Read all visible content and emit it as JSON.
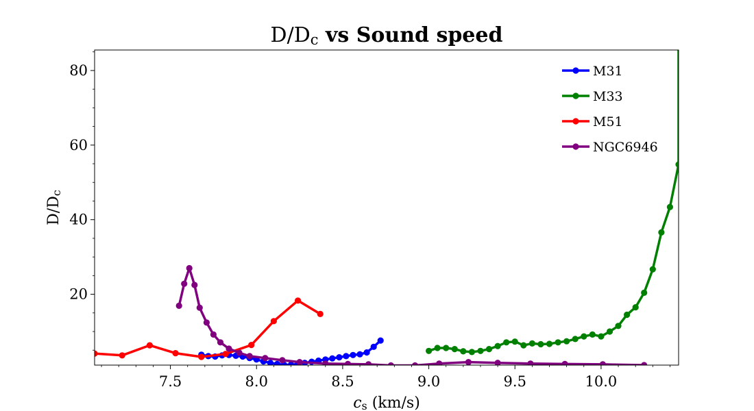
{
  "chart_data": {
    "type": "line",
    "title": "D/D_c vs Sound speed",
    "title_parts": {
      "lead": "D/D",
      "sub": "c",
      "tail": " vs Sound speed"
    },
    "xlabel": "c_s (km/s)",
    "xlabel_parts": {
      "main": "c",
      "sub": "s",
      "tail": " (km/s)"
    },
    "ylabel": "D/D_c",
    "ylabel_parts": {
      "lead": "D/D",
      "sub": "c"
    },
    "xlim": [
      7.06,
      10.45
    ],
    "ylim": [
      1.0,
      85.5
    ],
    "xticks": [
      7.5,
      8.0,
      8.5,
      9.0,
      9.5,
      10.0
    ],
    "xtick_labels": [
      "7.5",
      "8.0",
      "8.5",
      "9.0",
      "9.5",
      "10.0"
    ],
    "yticks": [
      20,
      40,
      60,
      80
    ],
    "ytick_labels": [
      "20",
      "40",
      "60",
      "80"
    ],
    "grid": false,
    "legend_position": "top-right",
    "series": [
      {
        "name": "M31",
        "color": "#0000ff",
        "x": [
          7.68,
          7.72,
          7.76,
          7.8,
          7.84,
          7.88,
          7.92,
          7.96,
          8.0,
          8.04,
          8.08,
          8.12,
          8.16,
          8.2,
          8.24,
          8.28,
          8.32,
          8.36,
          8.4,
          8.44,
          8.48,
          8.52,
          8.56,
          8.6,
          8.64,
          8.68,
          8.72
        ],
        "y": [
          3.8,
          3.4,
          3.3,
          3.6,
          3.7,
          3.5,
          3.3,
          2.9,
          2.5,
          2.0,
          1.6,
          1.3,
          1.1,
          1.1,
          1.3,
          1.6,
          1.9,
          2.2,
          2.5,
          2.8,
          3.1,
          3.4,
          3.7,
          3.9,
          4.4,
          5.9,
          7.6
        ]
      },
      {
        "name": "M33",
        "color": "#008000",
        "x": [
          9.0,
          9.05,
          9.1,
          9.15,
          9.2,
          9.25,
          9.3,
          9.35,
          9.4,
          9.45,
          9.5,
          9.55,
          9.6,
          9.65,
          9.7,
          9.75,
          9.8,
          9.85,
          9.9,
          9.95,
          10.0,
          10.05,
          10.1,
          10.15,
          10.2,
          10.25,
          10.3,
          10.35,
          10.4,
          10.45
        ],
        "y": [
          4.8,
          5.6,
          5.6,
          5.3,
          4.7,
          4.5,
          4.8,
          5.3,
          6.1,
          7.1,
          7.3,
          6.3,
          6.8,
          6.6,
          6.7,
          7.1,
          7.4,
          8.0,
          8.7,
          9.2,
          8.7,
          10.0,
          11.5,
          14.5,
          16.5,
          20.4,
          26.7,
          36.6,
          43.4,
          54.8
        ],
        "y_end": 85.5
      },
      {
        "name": "M51",
        "color": "#ff0000",
        "x": [
          7.06,
          7.22,
          7.38,
          7.53,
          7.68,
          7.82,
          7.97,
          8.1,
          8.24,
          8.37
        ],
        "y": [
          4.1,
          3.6,
          6.3,
          4.2,
          3.2,
          4.0,
          6.4,
          12.8,
          18.3,
          14.7
        ]
      },
      {
        "name": "NGC6946",
        "color": "#800080",
        "x": [
          7.55,
          7.58,
          7.61,
          7.64,
          7.67,
          7.71,
          7.75,
          7.79,
          7.84,
          7.9,
          7.96,
          8.05,
          8.15,
          8.25,
          8.4,
          8.53,
          8.65,
          8.78,
          8.92,
          9.06,
          9.23,
          9.4,
          9.59,
          9.79,
          10.01,
          10.25
        ],
        "y": [
          16.9,
          22.8,
          27.0,
          22.5,
          16.4,
          12.4,
          9.2,
          7.1,
          5.4,
          4.3,
          3.4,
          2.9,
          2.3,
          1.8,
          1.4,
          1.3,
          1.2,
          0.9,
          0.9,
          1.4,
          1.8,
          1.6,
          1.4,
          1.3,
          1.2,
          1.0
        ]
      }
    ]
  }
}
